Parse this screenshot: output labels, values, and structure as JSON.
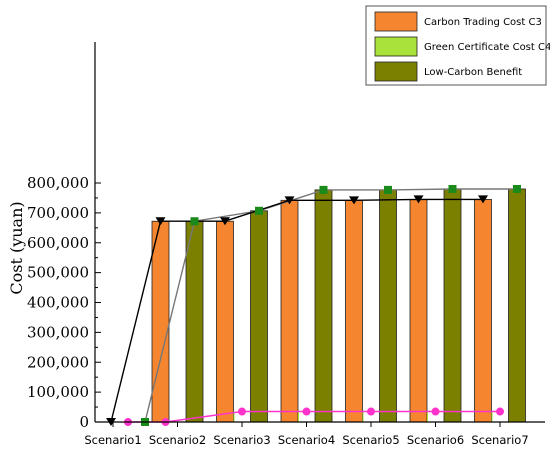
{
  "chart_data": {
    "type": "bar",
    "title": "",
    "xlabel": "",
    "ylabel": "Cost (yuan)",
    "ylim": [
      0,
      900000
    ],
    "yticks": [
      0,
      100000,
      200000,
      300000,
      400000,
      500000,
      600000,
      700000,
      800000
    ],
    "ytick_labels": [
      "0",
      "100,000",
      "200,000",
      "300,000",
      "400,000",
      "500,000",
      "600,000",
      "700,000",
      "800,000"
    ],
    "categories": [
      "Scenario1",
      "Scenario2",
      "Scenario3",
      "Scenario4",
      "Scenario5",
      "Scenario6",
      "Scenario7"
    ],
    "legend_position": "top-right",
    "grid": false,
    "series": [
      {
        "name": "Carbon Trading Cost C3",
        "color": "#f5862f",
        "marker": "triangle-down",
        "line_color": "#000000",
        "values": [
          0,
          672000,
          672000,
          742000,
          742000,
          745000,
          745000
        ]
      },
      {
        "name": "Green Certificate Cost C4",
        "color": "#a8e23a",
        "marker": "circle",
        "line_color": "#ff33cc",
        "marker_color": "#ff33cc",
        "values": [
          0,
          0,
          35000,
          35000,
          35000,
          35000,
          35000
        ]
      },
      {
        "name": "Low-Carbon Benefit",
        "color": "#7c8000",
        "marker": "square",
        "line_color": "#777777",
        "marker_color": "#1a8a1a",
        "values": [
          0,
          672000,
          707000,
          777000,
          777000,
          780000,
          780000
        ]
      }
    ]
  }
}
